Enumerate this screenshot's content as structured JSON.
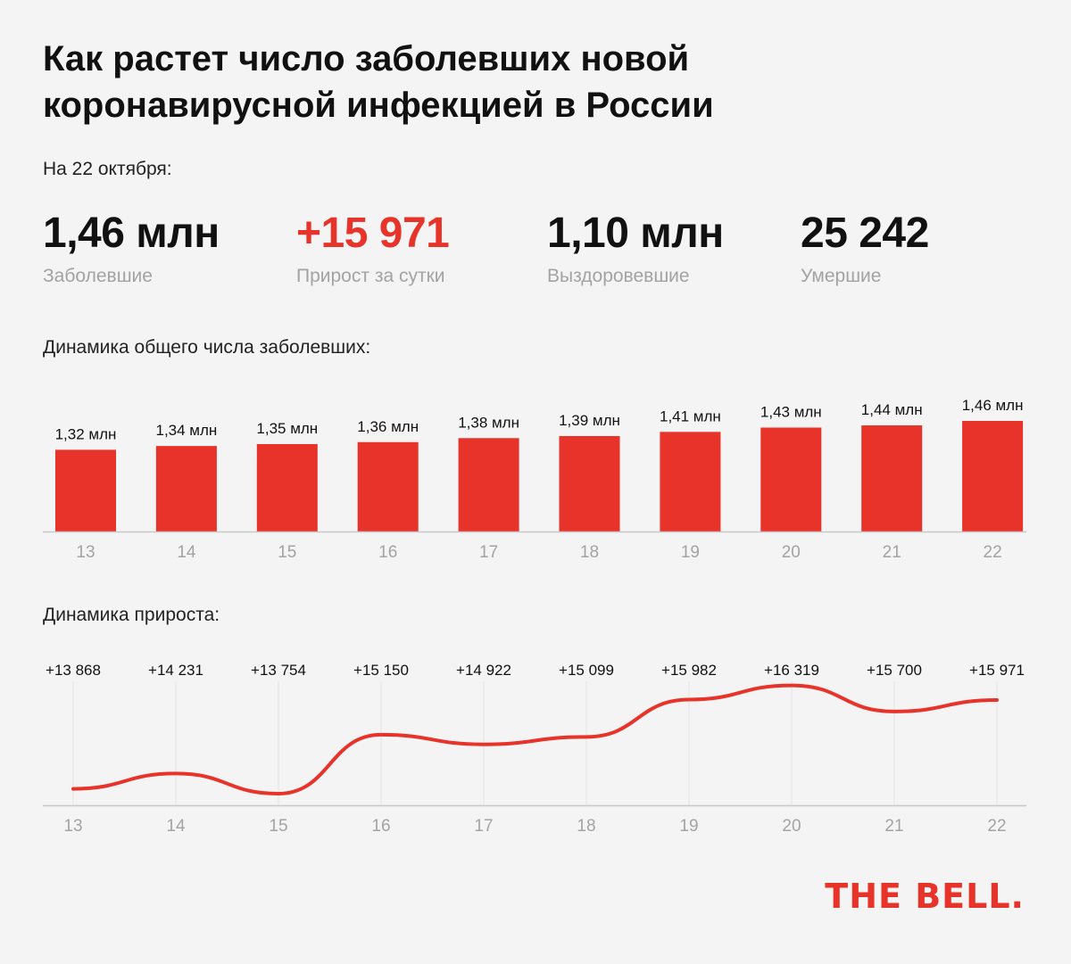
{
  "title_line1": "Как растет число заболевших новой",
  "title_line2": "коронавирусной инфекцией в России",
  "date_label": "На 22 октября:",
  "stats": [
    {
      "value": "1,46 млн",
      "label": "Заболевшие",
      "color": "#111111"
    },
    {
      "value": "+15 971",
      "label": "Прирост за сутки",
      "color": "#e8332a"
    },
    {
      "value": "1,10 млн",
      "label": "Выздоровевшие",
      "color": "#111111"
    },
    {
      "value": "25 242",
      "label": "Умершие",
      "color": "#111111"
    }
  ],
  "bar_section_label": "Динамика общего числа заболевших:",
  "line_section_label": "Динамика прироста:",
  "logo": "THE BELL.",
  "colors": {
    "accent": "#e8332a",
    "axis_text": "#a3a3a3"
  },
  "chart_data": [
    {
      "type": "bar",
      "categories": [
        "13",
        "14",
        "15",
        "16",
        "17",
        "18",
        "19",
        "20",
        "21",
        "22"
      ],
      "values": [
        1.32,
        1.34,
        1.35,
        1.36,
        1.38,
        1.39,
        1.41,
        1.43,
        1.44,
        1.46
      ],
      "data_labels": [
        "1,32 млн",
        "1,34 млн",
        "1,35 млн",
        "1,36 млн",
        "1,38 млн",
        "1,39 млн",
        "1,41 млн",
        "1,43 млн",
        "1,44 млн",
        "1,46 млн"
      ],
      "title": "Динамика общего числа заболевших:",
      "ylim": [
        0,
        1.46
      ]
    },
    {
      "type": "line",
      "categories": [
        "13",
        "14",
        "15",
        "16",
        "17",
        "18",
        "19",
        "20",
        "21",
        "22"
      ],
      "values": [
        13868,
        14231,
        13754,
        15150,
        14922,
        15099,
        15982,
        16319,
        15700,
        15971
      ],
      "data_labels": [
        "+13 868",
        "+14 231",
        "+13 754",
        "+15 150",
        "+14 922",
        "+15 099",
        "+15 982",
        "+16 319",
        "+15 700",
        "+15 971"
      ],
      "title": "Динамика прироста:",
      "ylim": [
        13500,
        16500
      ]
    }
  ]
}
